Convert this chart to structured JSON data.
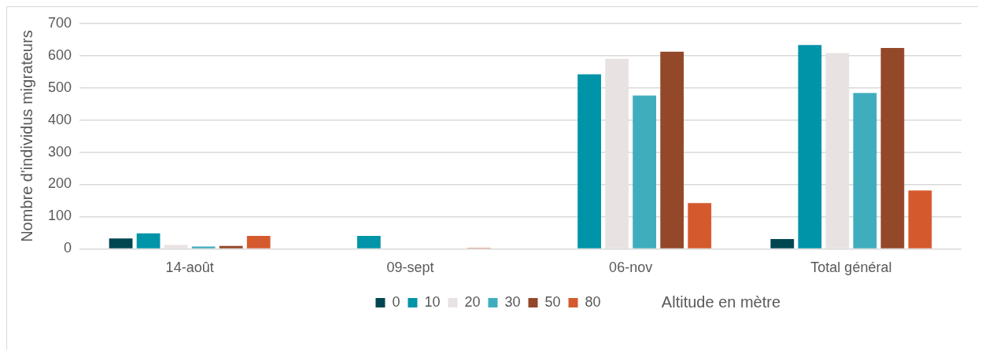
{
  "chart_data": {
    "type": "bar",
    "xlabel": "Altitude en mètre",
    "ylabel": "Nombre d'individus migrateurs",
    "categories": [
      "14-août",
      "09-sept",
      "06-nov",
      "Total général"
    ],
    "series": [
      {
        "name": "0",
        "color": "#004650",
        "values": [
          32,
          0,
          0,
          30
        ]
      },
      {
        "name": "10",
        "color": "#0094a8",
        "values": [
          48,
          40,
          542,
          633
        ]
      },
      {
        "name": "20",
        "color": "#e8e3e2",
        "values": [
          12,
          null,
          590,
          608
        ]
      },
      {
        "name": "30",
        "color": "#40adbd",
        "values": [
          7,
          0,
          476,
          484
        ]
      },
      {
        "name": "50",
        "color": "#934829",
        "values": [
          9,
          0,
          612,
          624
        ]
      },
      {
        "name": "80",
        "color": "#d45a2e",
        "values": [
          40,
          3,
          142,
          181
        ]
      }
    ],
    "ylim": [
      0,
      700
    ],
    "yticks": [
      0,
      100,
      200,
      300,
      400,
      500,
      600,
      700
    ],
    "grid": "y",
    "legend": "bottom"
  }
}
